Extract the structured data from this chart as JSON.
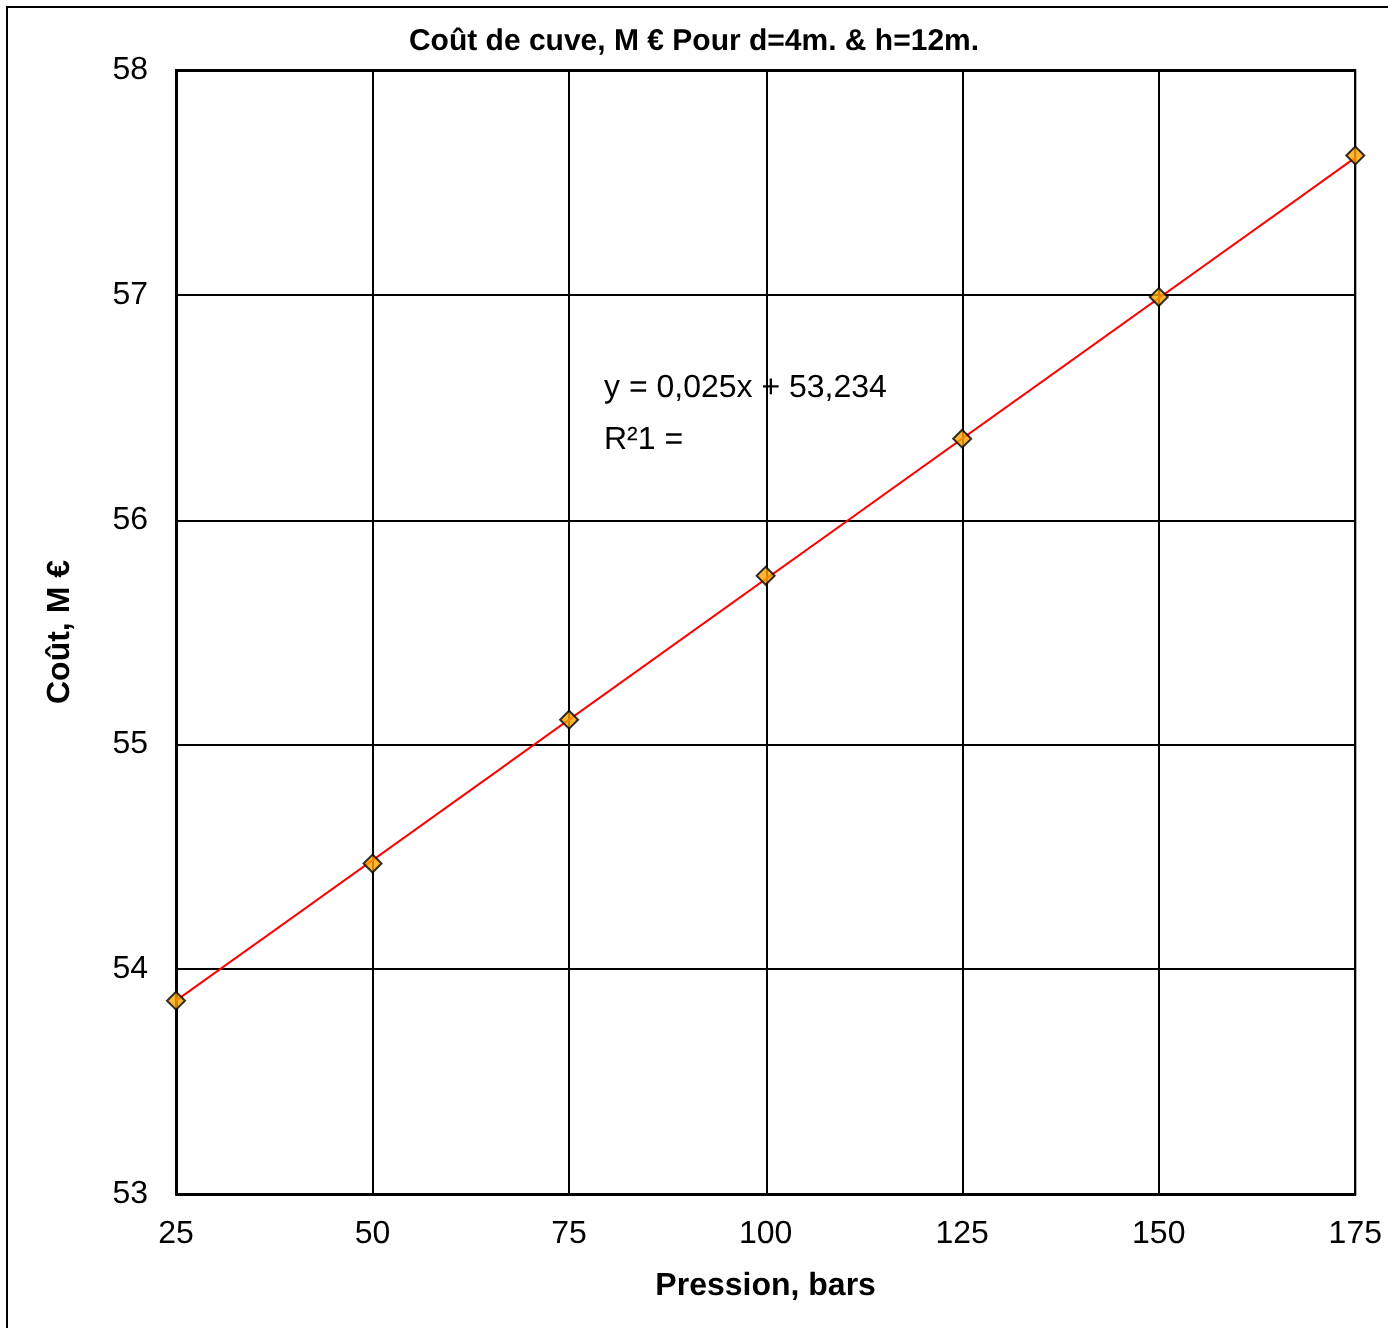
{
  "chart_data": {
    "type": "scatter",
    "title": "Coût de cuve, M € Pour d=4m. & h=12m.",
    "xlabel": "Pression, bars",
    "ylabel": "Coût, M €",
    "x": [
      25,
      50,
      75,
      100,
      125,
      150,
      175
    ],
    "series": [
      {
        "color": "#ffa500",
        "marker": "diamond",
        "values": [
          53.86,
          54.47,
          55.11,
          55.75,
          56.36,
          56.99,
          57.62
        ]
      },
      {
        "type": "line",
        "color": "#ff0000",
        "marker": "none",
        "x": [
          25,
          175
        ],
        "values": [
          53.86,
          57.61
        ]
      }
    ],
    "annotations": [
      "y = 0,025x + 53,234",
      "R²1 ="
    ],
    "xlim": [
      25,
      175
    ],
    "xticks": [
      25,
      50,
      75,
      100,
      125,
      150,
      175
    ],
    "ylim": [
      53,
      58
    ],
    "yticks": [
      53,
      54,
      55,
      56,
      57,
      58
    ],
    "grid": true
  }
}
